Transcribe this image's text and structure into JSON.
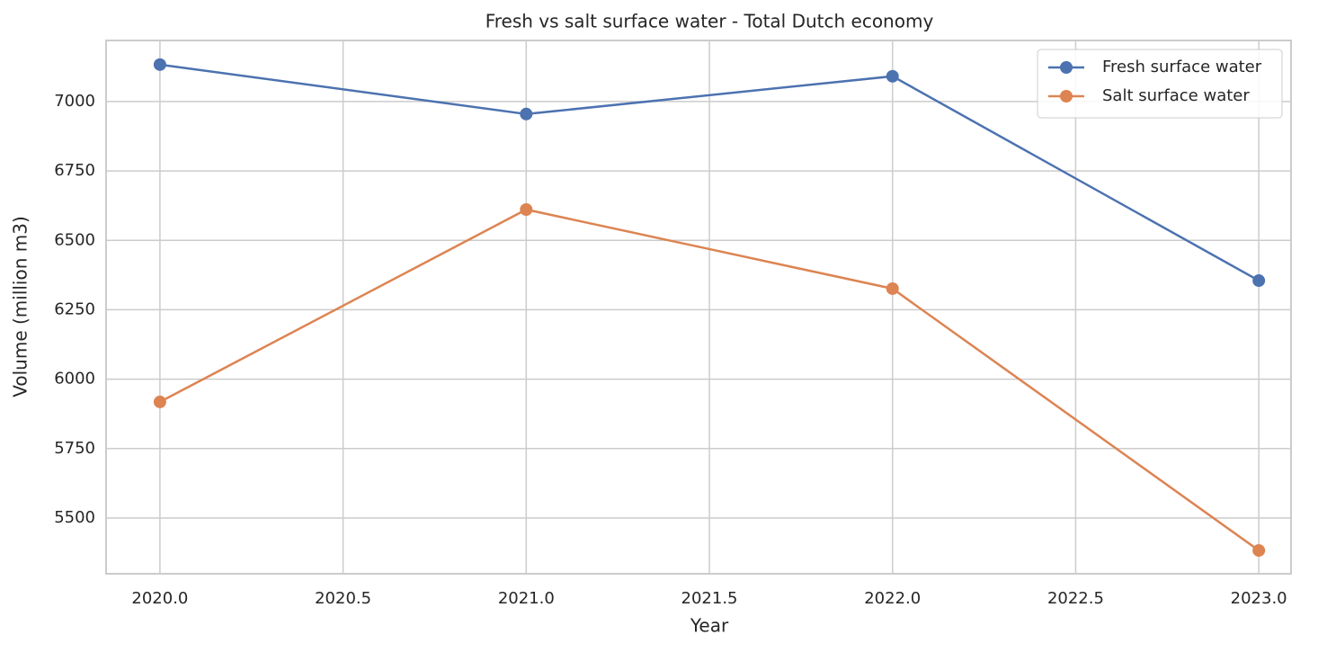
{
  "chart_data": {
    "type": "line",
    "title": "Fresh vs salt surface water - Total Dutch economy",
    "x_label": "Year",
    "y_label": "Volume (million m3)",
    "x": [
      2020,
      2021,
      2022,
      2023
    ],
    "series": [
      {
        "name": "Fresh surface water",
        "color": "#4c72b0",
        "values": [
          7133,
          6955,
          7091,
          6355
        ]
      },
      {
        "name": "Salt surface water",
        "color": "#dd8452",
        "values": [
          5918,
          6611,
          6326,
          5383
        ]
      }
    ],
    "xlim": [
      2019.853,
      2023.088
    ],
    "xticks": [
      {
        "value": 2020,
        "label": "2020.0"
      },
      {
        "value": 2020.5,
        "label": "2020.5"
      },
      {
        "value": 2021,
        "label": "2021.0"
      },
      {
        "value": 2021.5,
        "label": "2021.5"
      },
      {
        "value": 2022,
        "label": "2022.0"
      },
      {
        "value": 2022.5,
        "label": "2022.5"
      },
      {
        "value": 2023,
        "label": "2023.0"
      }
    ],
    "ylim": [
      5299,
      7220
    ],
    "yticks": [
      5500,
      5750,
      6000,
      6250,
      6500,
      6750,
      7000
    ],
    "grid": true,
    "legend": "upper-right"
  }
}
